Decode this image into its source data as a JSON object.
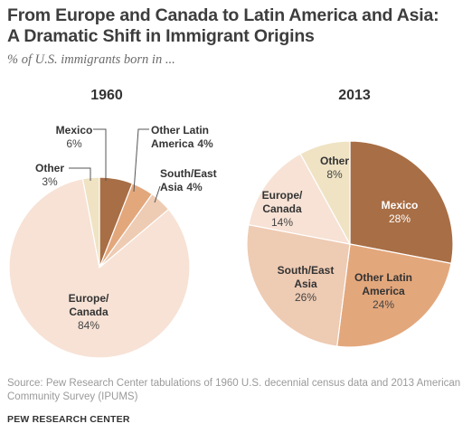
{
  "title_line1": "From Europe and Canada to Latin America and Asia:",
  "title_line2": "A Dramatic Shift in Immigrant Origins",
  "subtitle": "% of U.S. immigrants born in ...",
  "source": "Source: Pew Research Center tabulations of 1960 U.S. decennial census data and 2013 American Community Survey (IPUMS)",
  "credit": "PEW RESEARCH CENTER",
  "colors": {
    "mexico": "#a86e45",
    "other_latin_america": "#e3a77c",
    "south_east_asia": "#eecbb3",
    "europe_canada": "#f7e2d5",
    "other": "#efe3c4",
    "leader": "#555555"
  },
  "chart_data": [
    {
      "type": "pie",
      "title": "1960",
      "slices": [
        {
          "key": "mexico",
          "label": "Mexico",
          "value": 6,
          "value_label": "6%"
        },
        {
          "key": "other_latin_america",
          "label": "Other Latin America",
          "label_lines": [
            "Other Latin",
            "America"
          ],
          "value": 4,
          "value_label": "4%"
        },
        {
          "key": "south_east_asia",
          "label": "South/East Asia",
          "label_lines": [
            "South/East",
            "Asia"
          ],
          "value": 4,
          "value_label": "4%"
        },
        {
          "key": "europe_canada",
          "label": "Europe/Canada",
          "label_lines": [
            "Europe/",
            "Canada"
          ],
          "value": 84,
          "value_label": "84%"
        },
        {
          "key": "other",
          "label": "Other",
          "value": 3,
          "value_label": "3%"
        }
      ]
    },
    {
      "type": "pie",
      "title": "2013",
      "slices": [
        {
          "key": "mexico",
          "label": "Mexico",
          "value": 28,
          "value_label": "28%"
        },
        {
          "key": "other_latin_america",
          "label": "Other Latin America",
          "label_lines": [
            "Other Latin",
            "America"
          ],
          "value": 24,
          "value_label": "24%"
        },
        {
          "key": "south_east_asia",
          "label": "South/East Asia",
          "label_lines": [
            "South/East",
            "Asia"
          ],
          "value": 26,
          "value_label": "26%"
        },
        {
          "key": "europe_canada",
          "label": "Europe/Canada",
          "label_lines": [
            "Europe/",
            "Canada"
          ],
          "value": 14,
          "value_label": "14%"
        },
        {
          "key": "other",
          "label": "Other",
          "value": 8,
          "value_label": "8%"
        }
      ]
    }
  ]
}
